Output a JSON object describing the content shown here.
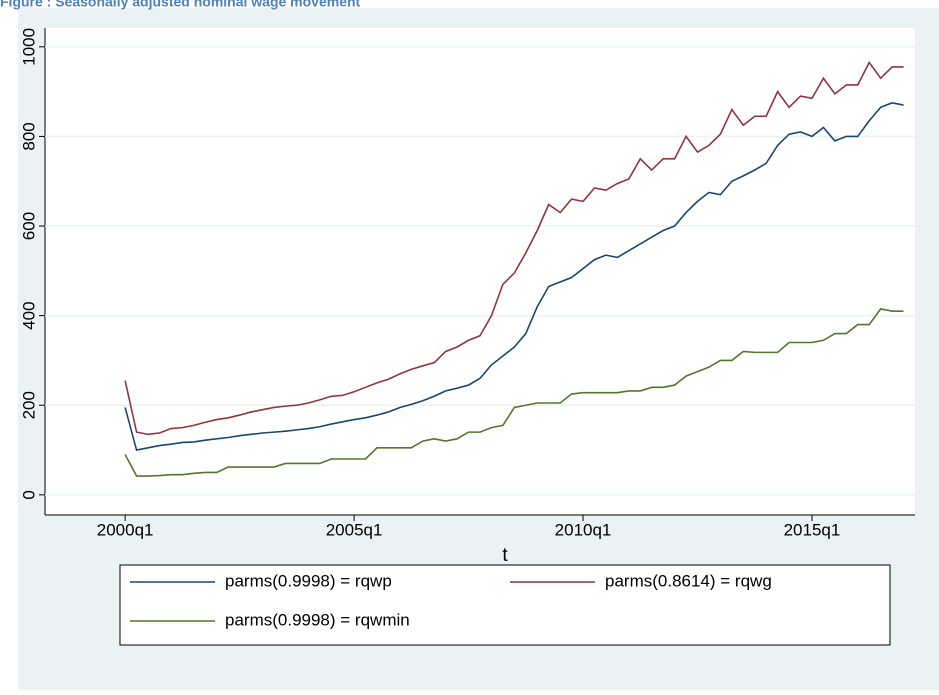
{
  "chart_data": {
    "type": "line",
    "title": "Figure : Seasonally adjusted nominal wage movement",
    "x_label": "t",
    "x": [
      160,
      161,
      162,
      163,
      164,
      165,
      166,
      167,
      168,
      169,
      170,
      171,
      172,
      173,
      174,
      175,
      176,
      177,
      178,
      179,
      180,
      181,
      182,
      183,
      184,
      185,
      186,
      187,
      188,
      189,
      190,
      191,
      192,
      193,
      194,
      195,
      196,
      197,
      198,
      199,
      200,
      201,
      202,
      203,
      204,
      205,
      206,
      207,
      208,
      209,
      210,
      211,
      212,
      213,
      214,
      215,
      216,
      217,
      218,
      219,
      220,
      221,
      222,
      223,
      224,
      225,
      226,
      227,
      228
    ],
    "xlim": [
      153,
      229
    ],
    "xticks": [
      {
        "value": 160,
        "label": "2000q1"
      },
      {
        "value": 180,
        "label": "2005q1"
      },
      {
        "value": 200,
        "label": "2010q1"
      },
      {
        "value": 220,
        "label": "2015q1"
      }
    ],
    "ylim": [
      -45,
      1042
    ],
    "yticks": [
      0,
      200,
      400,
      600,
      800,
      1000
    ],
    "grid": true,
    "series": [
      {
        "name": "parms(0.9998) = rqwp",
        "color": "#1a476f",
        "values": [
          195,
          100,
          105,
          110,
          113,
          117,
          118,
          122,
          125,
          128,
          132,
          135,
          138,
          140,
          142,
          145,
          148,
          152,
          158,
          163,
          168,
          172,
          178,
          185,
          195,
          202,
          210,
          220,
          232,
          238,
          245,
          260,
          290,
          310,
          330,
          360,
          420,
          465,
          475,
          485,
          505,
          525,
          535,
          530,
          545,
          560,
          575,
          590,
          600,
          630,
          655,
          675,
          670,
          700,
          712,
          725,
          740,
          780,
          805,
          810,
          800,
          820,
          790,
          800,
          800,
          835,
          865,
          875,
          870
        ]
      },
      {
        "name": "parms(0.8614) = rqwg",
        "color": "#90353b",
        "values": [
          255,
          140,
          135,
          138,
          148,
          150,
          155,
          162,
          168,
          172,
          178,
          185,
          190,
          195,
          198,
          200,
          205,
          212,
          220,
          222,
          230,
          240,
          250,
          258,
          270,
          280,
          288,
          295,
          320,
          330,
          345,
          355,
          400,
          470,
          495,
          540,
          590,
          648,
          630,
          660,
          655,
          685,
          680,
          695,
          705,
          750,
          725,
          750,
          750,
          800,
          765,
          780,
          805,
          860,
          825,
          845,
          845,
          900,
          865,
          890,
          885,
          930,
          895,
          915,
          915,
          965,
          930,
          955,
          955
        ]
      },
      {
        "name": "parms(0.9998) = rqwmin",
        "color": "#55752f",
        "values": [
          90,
          42,
          42,
          43,
          45,
          45,
          48,
          50,
          50,
          62,
          62,
          62,
          62,
          62,
          70,
          70,
          70,
          70,
          80,
          80,
          80,
          80,
          105,
          105,
          105,
          105,
          120,
          125,
          120,
          125,
          140,
          140,
          150,
          155,
          195,
          200,
          205,
          205,
          205,
          225,
          228,
          228,
          228,
          228,
          232,
          232,
          240,
          240,
          245,
          265,
          275,
          285,
          300,
          300,
          320,
          318,
          318,
          318,
          340,
          340,
          340,
          345,
          360,
          360,
          380,
          380,
          415,
          410,
          410
        ]
      }
    ]
  }
}
